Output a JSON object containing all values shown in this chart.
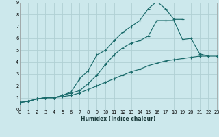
{
  "xlabel": "Humidex (Indice chaleur)",
  "background_color": "#cce8ec",
  "grid_color": "#b0d0d4",
  "line_color": "#1a6b6b",
  "xlim": [
    0,
    23
  ],
  "ylim": [
    0,
    9
  ],
  "xticks": [
    0,
    1,
    2,
    3,
    4,
    5,
    6,
    7,
    8,
    9,
    10,
    11,
    12,
    13,
    14,
    15,
    16,
    17,
    18,
    19,
    20,
    21,
    22,
    23
  ],
  "yticks": [
    0,
    1,
    2,
    3,
    4,
    5,
    6,
    7,
    8,
    9
  ],
  "series": [
    {
      "x": [
        0,
        1,
        2,
        3,
        4,
        5,
        6,
        7,
        8,
        9,
        10,
        11,
        12,
        13,
        14,
        15,
        16,
        17,
        18,
        19
      ],
      "y": [
        0.6,
        0.7,
        0.9,
        1.0,
        1.0,
        1.2,
        1.5,
        2.6,
        3.3,
        4.6,
        5.0,
        5.8,
        6.5,
        7.0,
        7.5,
        8.5,
        9.1,
        8.5,
        7.6,
        7.6
      ]
    },
    {
      "x": [
        0,
        1,
        2,
        3,
        4,
        5,
        6,
        7,
        8,
        9,
        10,
        11,
        12,
        13,
        14,
        15,
        16,
        17,
        18,
        19,
        20,
        21,
        22
      ],
      "y": [
        0.6,
        0.7,
        0.9,
        1.0,
        1.0,
        1.2,
        1.4,
        1.6,
        2.2,
        2.9,
        3.8,
        4.6,
        5.2,
        5.6,
        5.8,
        6.2,
        7.5,
        7.5,
        7.5,
        5.9,
        6.0,
        4.7,
        4.5
      ]
    },
    {
      "x": [
        0,
        1,
        2,
        3,
        4,
        5,
        6,
        7,
        8,
        9,
        10,
        11,
        12,
        13,
        14,
        15,
        16,
        17,
        18,
        19,
        20,
        21,
        22,
        23
      ],
      "y": [
        0.6,
        0.7,
        0.9,
        1.0,
        1.0,
        1.1,
        1.2,
        1.4,
        1.7,
        2.0,
        2.3,
        2.6,
        2.9,
        3.2,
        3.4,
        3.7,
        3.9,
        4.1,
        4.2,
        4.3,
        4.4,
        4.5,
        4.5,
        4.5
      ]
    }
  ]
}
